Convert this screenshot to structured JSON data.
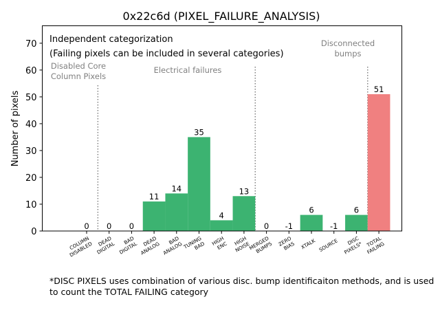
{
  "chart_data": {
    "type": "bar",
    "title": "0x22c6d (PIXEL_FAILURE_ANALYSIS)",
    "xlabel": "",
    "ylabel": "Number of pixels",
    "ylim": [
      0,
      76.5
    ],
    "yticks": [
      0,
      10,
      20,
      30,
      40,
      50,
      60,
      70
    ],
    "grid": false,
    "categories": [
      [
        "COLUMN",
        "DISABLED"
      ],
      [
        "DEAD",
        "DIGITAL"
      ],
      [
        "BAD",
        "DIGITAL"
      ],
      [
        "DEAD",
        "ANALOG"
      ],
      [
        "BAD",
        "ANALOG"
      ],
      [
        "TUNING",
        "BAD"
      ],
      [
        "HIGH",
        "ENC"
      ],
      [
        "HIGH",
        "NOISE"
      ],
      [
        "MERGED",
        "BUMPS"
      ],
      [
        "ZERO",
        "BIAS"
      ],
      [
        "XTALK"
      ],
      [
        "SOURCE"
      ],
      [
        "DISC",
        "PIXELS*"
      ],
      [
        "TOTAL",
        "FAILING"
      ]
    ],
    "values": [
      0,
      0,
      0,
      11,
      14,
      35,
      4,
      13,
      0,
      -1,
      6,
      -1,
      6,
      51
    ],
    "bar_labels": [
      "0",
      "0",
      "0",
      "11",
      "14",
      "35",
      "4",
      "13",
      "0",
      "-1",
      "6",
      "-1",
      "6",
      "51"
    ],
    "colors": [
      "#3cb371",
      "#3cb371",
      "#3cb371",
      "#3cb371",
      "#3cb371",
      "#3cb371",
      "#3cb371",
      "#3cb371",
      "#3cb371",
      "#3cb371",
      "#3cb371",
      "#3cb371",
      "#3cb371",
      "#f08080"
    ],
    "separators": [
      0.5,
      7.5,
      12.5
    ],
    "annotations": {
      "line1": "Independent categorization",
      "line2": "(Failing pixels can be included in several categories)",
      "group_core_1": "Disabled Core",
      "group_core_2": "Column Pixels",
      "group_electrical": "Electrical failures",
      "group_disconnected_1": "Disconnected",
      "group_disconnected_2": "bumps"
    }
  },
  "footnote": {
    "line1": "*DISC PIXELS uses combination of various disc. bump identificaiton methods, and is used",
    "line2": "to count the TOTAL FAILING category"
  },
  "colors": {
    "failure_bar": "#3cb371",
    "total_bar": "#f08080",
    "separator": "#808080",
    "annotation_gray": "#808080"
  }
}
